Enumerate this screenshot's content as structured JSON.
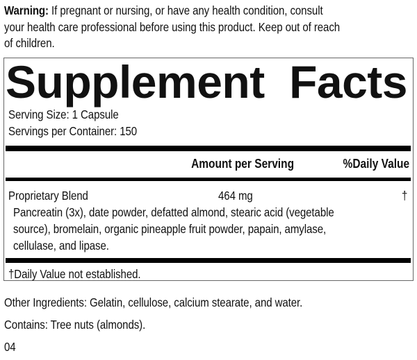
{
  "warning": {
    "label": "Warning:",
    "lines": [
      "If pregnant or nursing, or have any health condition, consult",
      "your health care professional before using this product. Keep out of reach",
      "of children."
    ]
  },
  "facts": {
    "title_words": [
      "Supplement",
      "Facts"
    ],
    "serving_size": "Serving Size: 1 Capsule",
    "servings_per_container": "Servings per Container: 150",
    "header": {
      "amount": "Amount per Serving",
      "daily_value": "%Daily Value"
    },
    "rows": [
      {
        "name": "Proprietary Blend",
        "amount": "464 mg",
        "dv": "†",
        "ingredients_lines": [
          "Pancreatin (3x), date powder, defatted almond, stearic acid (vegetable",
          "source), bromelain, organic pineapple fruit powder, papain, amylase,",
          "cellulase, and lipase."
        ]
      }
    ],
    "footnote": "†Daily Value not established."
  },
  "other_ingredients": "Other Ingredients: Gelatin, cellulose, calcium stearate, and water.",
  "contains": "Contains: Tree nuts (almonds).",
  "code": "04"
}
